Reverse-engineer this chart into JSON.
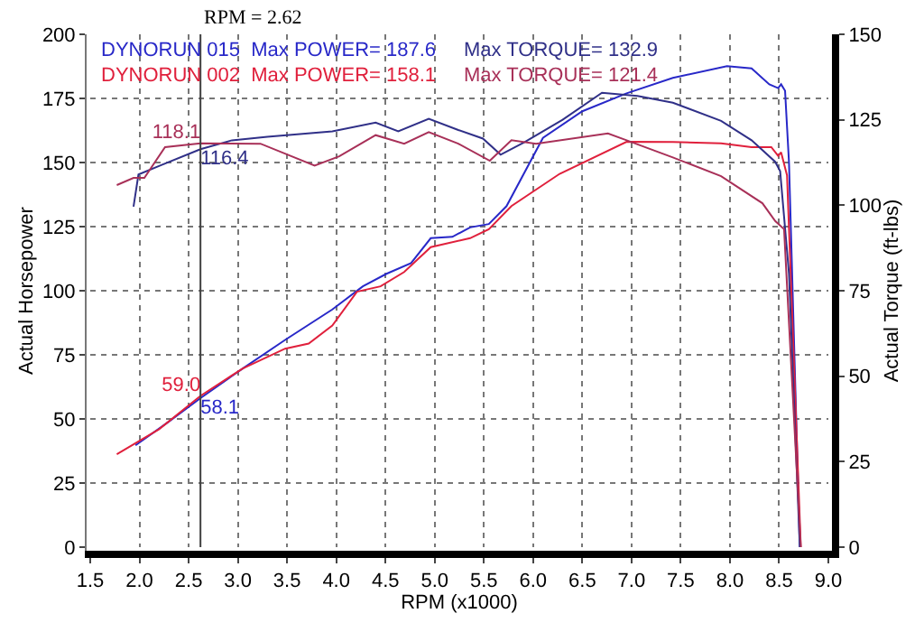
{
  "chart_data": {
    "type": "line",
    "xlabel": "RPM (x1000)",
    "ylabel": "Actual Horsepower",
    "y2label": "Actual Torque (ft-lbs)",
    "annotations": [
      "DYNORUN 015  Max POWER= 187.6",
      "Max TORQUE= 132.9",
      "DYNORUN 002  Max POWER= 158.1",
      "Max TORQUE= 121.4"
    ],
    "xlim": [
      1.5,
      9.0
    ],
    "xticks": [
      1.5,
      {
        "value": 2,
        "label": "2.0"
      },
      2.5,
      {
        "value": 3,
        "label": "3.0"
      },
      3.5,
      {
        "value": 4,
        "label": "4.0"
      },
      4.5,
      {
        "value": 5,
        "label": "5.0"
      },
      5.5,
      {
        "value": 6,
        "label": "6.0"
      },
      6.5,
      {
        "value": 7,
        "label": "7.0"
      },
      7.5,
      {
        "value": 8,
        "label": "8.0"
      },
      8.5,
      {
        "value": 9,
        "label": "9.0"
      }
    ],
    "ylim": [
      0,
      200
    ],
    "yticks": [
      0,
      25,
      50,
      75,
      100,
      125,
      150,
      175,
      200
    ],
    "y2lim": [
      0,
      150
    ],
    "y2ticks": [
      0,
      25,
      50,
      75,
      100,
      125,
      150
    ],
    "grid": true,
    "marker": "none",
    "line_style": "solid",
    "ref_lines": [
      {
        "axis": "x",
        "value": 2.62,
        "label": "RPM = 2.62",
        "color": "#404040"
      }
    ],
    "series": [
      {
        "color": "#2828c8",
        "x": [
          1.96,
          2.3,
          2.62,
          3.05,
          3.48,
          3.96,
          4.27,
          4.51,
          4.76,
          4.96,
          5.18,
          5.36,
          5.55,
          5.73,
          6.1,
          6.5,
          6.95,
          7.42,
          7.97,
          8.22,
          8.4,
          8.49,
          8.52,
          8.56,
          8.6,
          8.71
        ],
        "values": [
          39.7,
          49,
          58.1,
          69.7,
          80.8,
          92.7,
          101.7,
          106.6,
          110.8,
          120.5,
          121,
          124.7,
          126,
          133,
          159.6,
          170,
          177,
          183,
          187.6,
          186.7,
          180.5,
          179,
          180.5,
          178,
          150,
          0
        ],
        "value_labels": [
          null,
          null,
          "58.1",
          null,
          null,
          null,
          null,
          null,
          null,
          null,
          null,
          null,
          null,
          null,
          null,
          null,
          null,
          null,
          null,
          null,
          null,
          null,
          null,
          null,
          null,
          null
        ]
      },
      {
        "color": "#303088",
        "axis": "y2",
        "x": [
          1.94,
          1.99,
          2.21,
          2.62,
          2.94,
          3.3,
          3.96,
          4.4,
          4.63,
          4.94,
          5.24,
          5.49,
          5.67,
          5.91,
          6.3,
          6.7,
          7.06,
          7.42,
          7.91,
          8.22,
          8.46,
          8.51,
          8.6,
          8.71
        ],
        "values": [
          99.6,
          109,
          111.6,
          116.4,
          119,
          120,
          121.6,
          124.2,
          121.6,
          125.3,
          122,
          119.5,
          114.8,
          118.4,
          125,
          132.9,
          132,
          130,
          124.7,
          119,
          112.7,
          110,
          80,
          0
        ],
        "value_labels": [
          null,
          null,
          null,
          "116.4",
          null,
          null,
          null,
          null,
          null,
          null,
          null,
          null,
          null,
          null,
          null,
          null,
          null,
          null,
          null,
          null,
          null,
          null,
          null,
          null
        ]
      },
      {
        "color": "#e0203c",
        "x": [
          1.77,
          2.2,
          2.62,
          3.05,
          3.48,
          3.72,
          3.96,
          4.21,
          4.45,
          4.69,
          4.96,
          5.36,
          5.55,
          5.78,
          6.27,
          6.95,
          7.42,
          7.91,
          8.22,
          8.42,
          8.49,
          8.52,
          8.58,
          8.72
        ],
        "values": [
          36.2,
          46,
          59.0,
          69.7,
          77.4,
          79.4,
          86.4,
          99.6,
          101.7,
          107.3,
          117,
          120.5,
          124,
          133,
          145.6,
          158.1,
          158,
          157.5,
          156,
          156,
          152.6,
          154,
          145,
          0
        ],
        "value_labels": [
          null,
          null,
          "59.0",
          null,
          null,
          null,
          null,
          null,
          null,
          null,
          null,
          null,
          null,
          null,
          null,
          null,
          null,
          null,
          null,
          null,
          null,
          null,
          null,
          null
        ]
      },
      {
        "color": "#a83058",
        "axis": "y2",
        "x": [
          1.77,
          1.94,
          2.05,
          2.26,
          2.62,
          3.23,
          3.78,
          4.03,
          4.4,
          4.69,
          4.94,
          5.24,
          5.56,
          5.78,
          6.03,
          6.76,
          6.95,
          7.42,
          7.91,
          8.33,
          8.46,
          8.55,
          8.72
        ],
        "values": [
          105.9,
          108,
          108,
          117,
          118.1,
          118,
          111.6,
          114.3,
          120.5,
          118,
          121.4,
          118,
          113,
          119,
          118,
          121,
          119,
          114,
          108.5,
          100.6,
          95.4,
          93,
          0
        ],
        "value_labels": [
          null,
          null,
          null,
          null,
          "118.1",
          null,
          null,
          null,
          null,
          null,
          null,
          null,
          null,
          null,
          null,
          null,
          null,
          null,
          null,
          null,
          null,
          null,
          null
        ]
      }
    ]
  }
}
